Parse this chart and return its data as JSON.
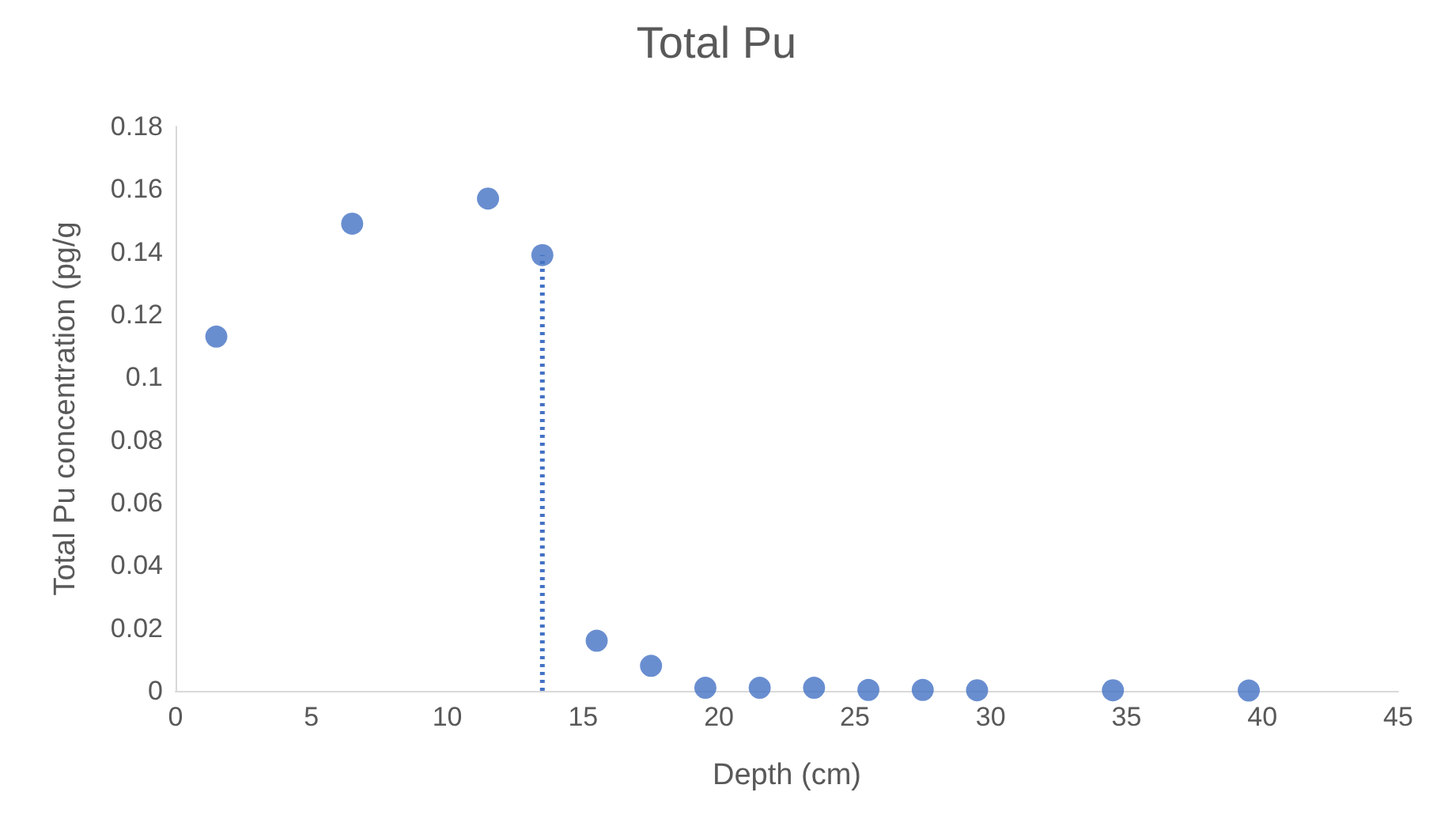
{
  "chart_data": {
    "type": "scatter",
    "title": "Total Pu",
    "xlabel": "Depth (cm)",
    "ylabel": "Total Pu concentration (pg/g",
    "series": [
      {
        "color": "#4472c4",
        "marker": "circle",
        "x": [
          1.5,
          6.5,
          11.5,
          13.5,
          15.5,
          17.5,
          19.5,
          21.5,
          23.5,
          25.5,
          27.5,
          29.5,
          34.5,
          39.5
        ],
        "values": [
          0.113,
          0.149,
          0.157,
          0.139,
          0.016,
          0.008,
          0.001,
          0.001,
          0.001,
          0.0003,
          0.0003,
          0.0002,
          0.0002,
          0.0001
        ]
      },
      {
        "type": "line",
        "color": "#4472c4",
        "marker": "none",
        "line_style": "dotted",
        "x": [
          13.5,
          13.5
        ],
        "values": [
          0,
          0.139
        ]
      }
    ],
    "xlim": [
      0,
      45
    ],
    "xticks": [
      0,
      5,
      10,
      15,
      20,
      25,
      30,
      35,
      40,
      45
    ],
    "ylim": [
      0,
      0.18
    ],
    "yticks": [
      0,
      0.02,
      0.04,
      0.06,
      0.08,
      0.1,
      0.12,
      0.14,
      0.16,
      0.18
    ],
    "grid": false
  }
}
